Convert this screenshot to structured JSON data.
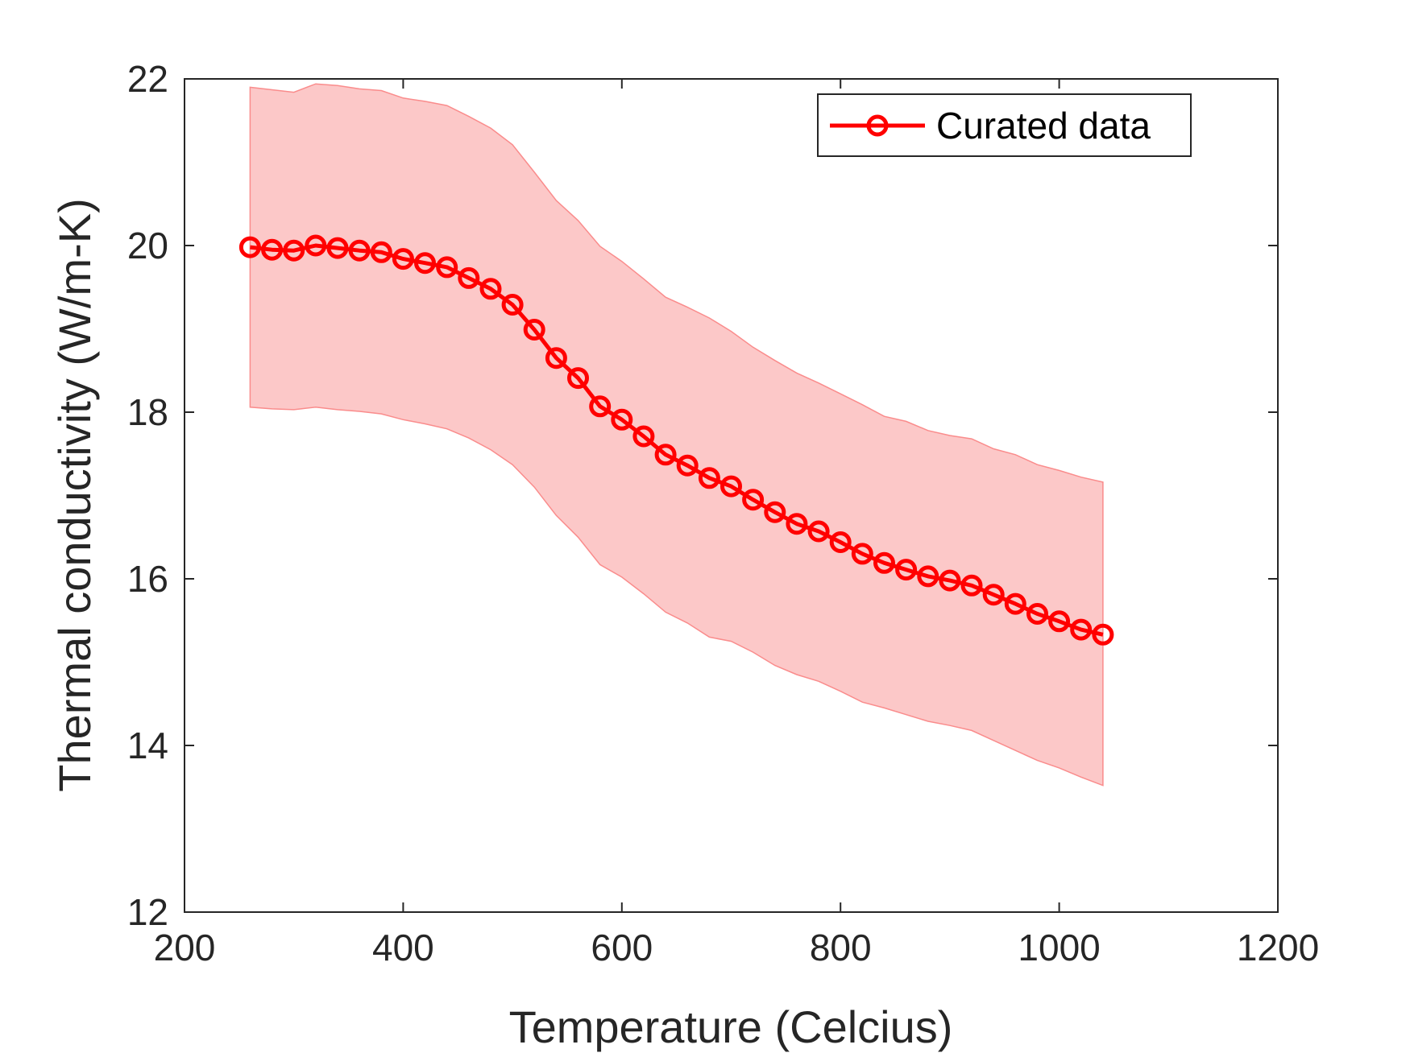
{
  "colors": {
    "line": "#ff0000",
    "band_fill": "#fcc8c8",
    "band_edge": "#fa8c8c",
    "axis": "#262626",
    "background": "#ffffff"
  },
  "chart_data": {
    "type": "line",
    "title": "",
    "xlabel": "Temperature (Celcius)",
    "ylabel": "Thermal conductivity (W/m-K)",
    "xlim": [
      200,
      1200
    ],
    "ylim": [
      12,
      22
    ],
    "x_ticks": [
      200,
      400,
      600,
      800,
      1000,
      1200
    ],
    "y_ticks": [
      12,
      14,
      16,
      18,
      20,
      22
    ],
    "grid": false,
    "legend_position": "top-right",
    "series": [
      {
        "name": "Curated data",
        "marker": "circle",
        "x": [
          260,
          280,
          300,
          320,
          340,
          360,
          380,
          400,
          420,
          440,
          460,
          480,
          500,
          520,
          540,
          560,
          580,
          600,
          620,
          640,
          660,
          680,
          700,
          720,
          740,
          760,
          780,
          800,
          820,
          840,
          860,
          880,
          900,
          920,
          940,
          960,
          980,
          1000,
          1020,
          1040
        ],
        "y": [
          19.98,
          19.95,
          19.94,
          20.0,
          19.97,
          19.94,
          19.92,
          19.84,
          19.79,
          19.74,
          19.61,
          19.48,
          19.29,
          18.99,
          18.65,
          18.41,
          18.07,
          17.91,
          17.71,
          17.49,
          17.36,
          17.21,
          17.11,
          16.95,
          16.8,
          16.66,
          16.57,
          16.44,
          16.3,
          16.19,
          16.11,
          16.03,
          15.98,
          15.92,
          15.81,
          15.7,
          15.58,
          15.49,
          15.39,
          15.33
        ],
        "upper": [
          21.9,
          21.87,
          21.84,
          21.94,
          21.92,
          21.88,
          21.86,
          21.77,
          21.73,
          21.68,
          21.55,
          21.41,
          21.21,
          20.88,
          20.54,
          20.3,
          19.99,
          19.81,
          19.6,
          19.38,
          19.26,
          19.13,
          18.97,
          18.78,
          18.62,
          18.47,
          18.35,
          18.22,
          18.09,
          17.95,
          17.89,
          17.78,
          17.72,
          17.68,
          17.56,
          17.49,
          17.37,
          17.3,
          17.22,
          17.16
        ],
        "lower": [
          18.06,
          18.04,
          18.03,
          18.06,
          18.03,
          18.01,
          17.98,
          17.91,
          17.86,
          17.8,
          17.69,
          17.55,
          17.37,
          17.1,
          16.76,
          16.5,
          16.17,
          16.02,
          15.82,
          15.6,
          15.47,
          15.3,
          15.25,
          15.12,
          14.96,
          14.85,
          14.77,
          14.65,
          14.52,
          14.45,
          14.37,
          14.29,
          14.24,
          14.18,
          14.06,
          13.94,
          13.82,
          13.73,
          13.62,
          13.52
        ]
      }
    ]
  }
}
